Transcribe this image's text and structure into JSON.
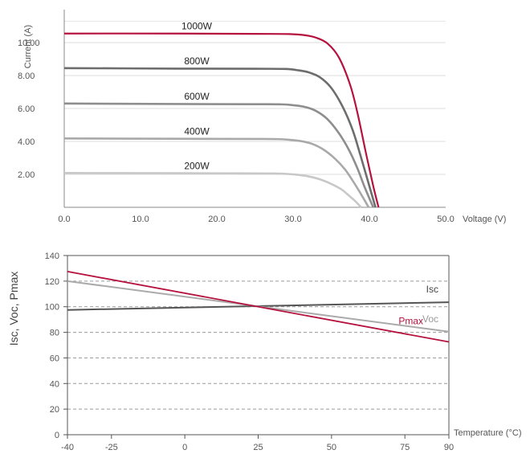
{
  "chart_data": [
    {
      "type": "line",
      "xlabel": "Voltage (V)",
      "ylabel": "Current (A)",
      "xlim": [
        0,
        50
      ],
      "ylim": [
        0,
        12
      ],
      "xticks": [
        "0.0",
        "10.0",
        "20.0",
        "30.0",
        "40.0",
        "50.0"
      ],
      "yticks": [
        "2.00",
        "4.00",
        "6.00",
        "8.00",
        "10.00"
      ],
      "grid": true,
      "series": [
        {
          "name": "1000W",
          "color": "#b5123e",
          "x": [
            0,
            15,
            25,
            29.5,
            31.5,
            33,
            34.5,
            36,
            37.5,
            38.5,
            39.5,
            40.5,
            41.2
          ],
          "y": [
            10.55,
            10.55,
            10.53,
            10.52,
            10.45,
            10.3,
            9.95,
            9.1,
            7.4,
            5.6,
            3.4,
            1.3,
            0
          ]
        },
        {
          "name": "800W",
          "color": "#6d6d6d",
          "x": [
            0,
            15,
            25,
            29,
            30.5,
            32,
            33.5,
            35,
            36.5,
            37.8,
            38.8,
            39.8,
            40.8
          ],
          "y": [
            8.45,
            8.42,
            8.41,
            8.4,
            8.33,
            8.2,
            7.9,
            7.25,
            6.1,
            4.7,
            3.2,
            1.6,
            0
          ]
        },
        {
          "name": "600W",
          "color": "#8e8e8e",
          "x": [
            0,
            15,
            25,
            28.5,
            30,
            31.5,
            33,
            34.5,
            36,
            37.3,
            38.4,
            39.4,
            40.5
          ],
          "y": [
            6.3,
            6.27,
            6.26,
            6.25,
            6.2,
            6.1,
            5.85,
            5.35,
            4.5,
            3.5,
            2.4,
            1.2,
            0
          ]
        },
        {
          "name": "400W",
          "color": "#a9a9a9",
          "x": [
            0,
            15,
            25,
            28,
            29.5,
            31,
            32.5,
            34,
            35.5,
            36.8,
            37.9,
            38.9,
            39.9
          ],
          "y": [
            4.18,
            4.16,
            4.15,
            4.14,
            4.1,
            4.02,
            3.85,
            3.5,
            2.95,
            2.3,
            1.55,
            0.8,
            0
          ]
        },
        {
          "name": "200W",
          "color": "#c8c8c8",
          "x": [
            0,
            15,
            25,
            27.5,
            29,
            30.5,
            32,
            33.5,
            35,
            36.3,
            37.3,
            38.2,
            38.9
          ],
          "y": [
            2.08,
            2.07,
            2.06,
            2.05,
            2.03,
            1.98,
            1.88,
            1.7,
            1.42,
            1.1,
            0.72,
            0.35,
            0
          ]
        }
      ]
    },
    {
      "type": "line",
      "xlabel": "Temperature (°C)",
      "ylabel": "Isc, Voc, Pmax",
      "xlim": [
        -40,
        90
      ],
      "ylim": [
        0,
        140
      ],
      "xticks": [
        "-40",
        "-25",
        "0",
        "25",
        "50",
        "75",
        "90"
      ],
      "yticks": [
        "0",
        "20",
        "40",
        "60",
        "80",
        "100",
        "120",
        "140"
      ],
      "grid": "dashed",
      "series": [
        {
          "name": "Isc",
          "color": "#555555",
          "x": [
            -40,
            90
          ],
          "y": [
            97.5,
            103.5
          ]
        },
        {
          "name": "Voc",
          "color": "#aaaaaa",
          "x": [
            -40,
            90
          ],
          "y": [
            120,
            80.5
          ]
        },
        {
          "name": "Pmax",
          "color": "#b5123e",
          "x": [
            -40,
            90
          ],
          "y": [
            127.5,
            72.5
          ]
        }
      ]
    }
  ]
}
